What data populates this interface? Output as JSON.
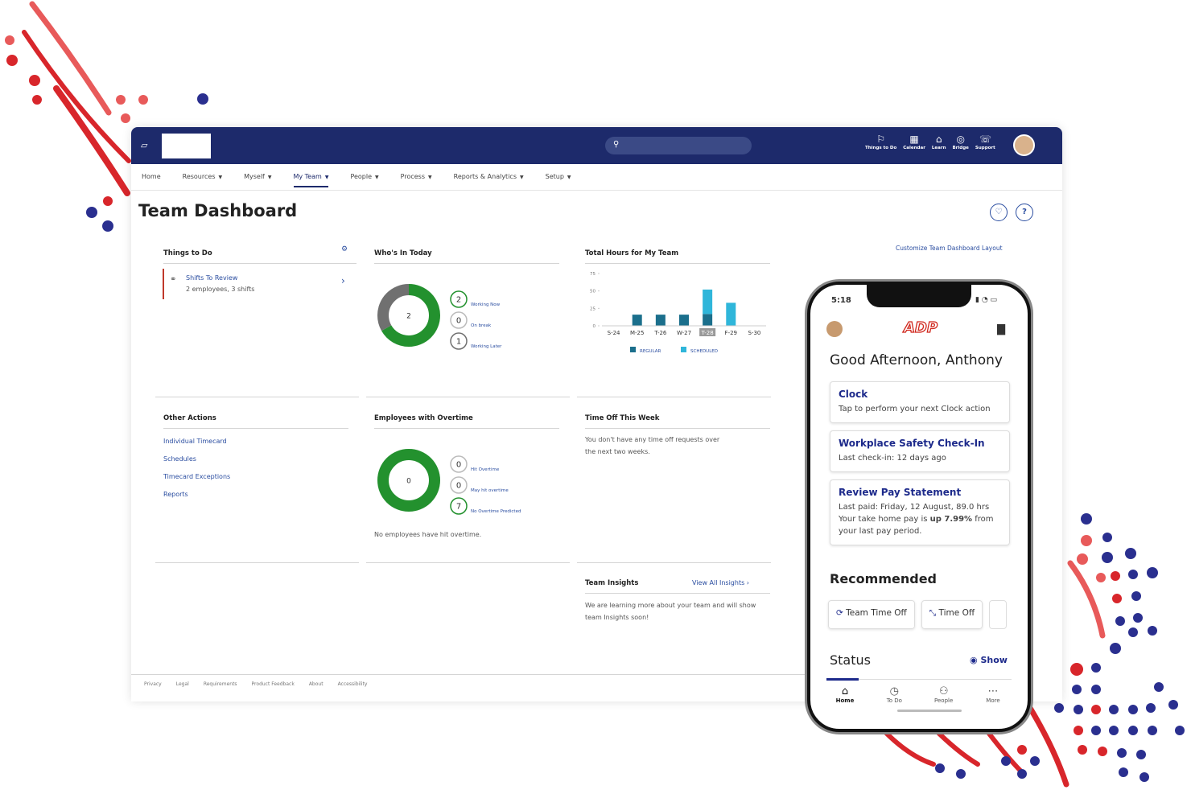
{
  "header": {
    "nav_icons": [
      "Things to Do",
      "Calendar",
      "Learn",
      "Bridge",
      "Support"
    ]
  },
  "menu": [
    "Home",
    "Resources",
    "Myself",
    "My Team",
    "People",
    "Process",
    "Reports & Analytics",
    "Setup"
  ],
  "page_title": "Team Dashboard",
  "customize_link": "Customize Team Dashboard Layout",
  "things_to_do": {
    "title": "Things to Do",
    "item_title": "Shifts To Review",
    "item_detail": "2 employees, 3 shifts"
  },
  "whos_in_today": {
    "title": "Who's In Today",
    "center": 2,
    "legend": [
      {
        "count": 2,
        "label": "Working Now",
        "color": "#23912e"
      },
      {
        "count": 0,
        "label": "On break",
        "color": "#bbbbbb"
      },
      {
        "count": 1,
        "label": "Working Later",
        "color": "#707070"
      }
    ]
  },
  "chart_data": {
    "type": "bar",
    "title": "Total Hours for My Team",
    "categories": [
      "S-24",
      "M-25",
      "T-26",
      "W-27",
      "T-28",
      "F-29",
      "S-30"
    ],
    "series": [
      {
        "name": "REGULAR",
        "color": "#1b6f8c",
        "values": [
          null,
          16,
          16,
          16,
          17,
          null,
          null
        ]
      },
      {
        "name": "SCHEDULED",
        "color": "#2fb6da",
        "values": [
          null,
          null,
          null,
          null,
          35,
          33,
          null
        ]
      }
    ],
    "ylim": [
      0,
      75
    ],
    "yticks": [
      0,
      25,
      50,
      75
    ],
    "stacked": true
  },
  "other_actions": {
    "title": "Other Actions",
    "links": [
      "Individual Timecard",
      "Schedules",
      "Timecard Exceptions",
      "Reports"
    ]
  },
  "overtime": {
    "title": "Employees with Overtime",
    "center": 0,
    "legend": [
      {
        "count": 0,
        "label": "Hit Overtime",
        "color": "#bbbbbb"
      },
      {
        "count": 0,
        "label": "May hit overtime",
        "color": "#bbbbbb"
      },
      {
        "count": 7,
        "label": "No Overtime Predicted",
        "color": "#23912e"
      }
    ],
    "note": "No employees have hit overtime."
  },
  "time_off": {
    "title": "Time Off This Week",
    "text": "You don't have any time off requests over the next two weeks."
  },
  "insights": {
    "title": "Team Insights",
    "link": "View All Insights",
    "text": "We are learning more about your team and will show team Insights soon!"
  },
  "footer": [
    "Privacy",
    "Legal",
    "Requirements",
    "Product Feedback",
    "About",
    "Accessibility"
  ],
  "phone": {
    "time": "5:18",
    "logo": "ADP",
    "greeting": "Good Afternoon, Anthony",
    "cards": [
      {
        "title": "Clock",
        "lines": [
          "Tap to perform your next Clock action"
        ]
      },
      {
        "title": "Workplace Safety Check-In",
        "lines": [
          "Last check-in: 12 days ago"
        ]
      },
      {
        "title": "Review Pay Statement",
        "lines": [
          "Last paid: Friday, 12 August, 89.0 hrs"
        ]
      }
    ],
    "pay_pre": "Your take home pay is",
    "pay_bold": "up 7.99%",
    "pay_post": "from your last pay period.",
    "recommended": "Recommended",
    "rec_buttons": [
      "Team Time Off",
      "Time Off"
    ],
    "status": "Status",
    "show": "Show",
    "tabs": [
      "Home",
      "To Do",
      "People",
      "More"
    ]
  }
}
